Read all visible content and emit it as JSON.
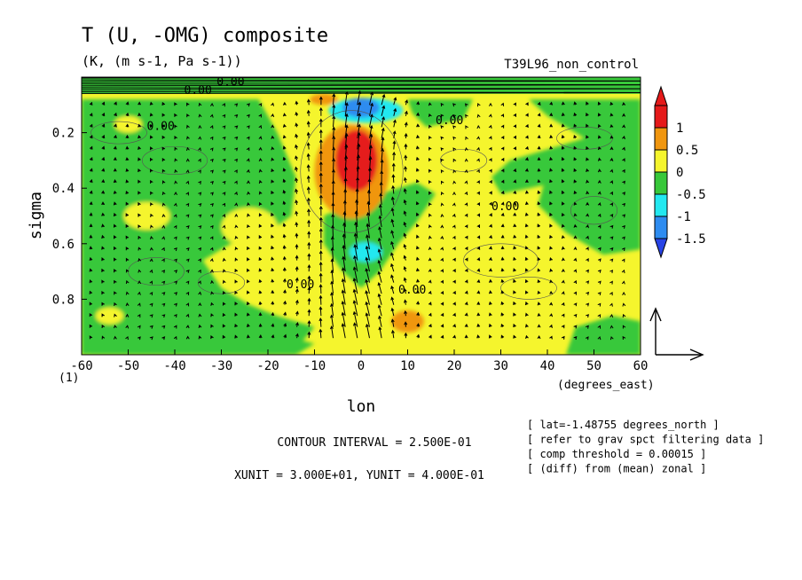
{
  "chart_data": {
    "type": "heatmap",
    "title": "T (U, -OMG) composite",
    "subtitle": "(K, (m s-1, Pa s-1))",
    "run_label": "T39L96_non_control",
    "xlabel": "lon",
    "xunits": "(degrees_east)",
    "ylabel": "sigma",
    "xlim": [
      -60,
      60
    ],
    "ylim": [
      1.0,
      0.0
    ],
    "y_inverted": true,
    "x_ticks": [
      "-60",
      "-50",
      "-40",
      "-30",
      "-20",
      "-10",
      "0",
      "10",
      "20",
      "30",
      "40",
      "50",
      "60"
    ],
    "y_ticks": [
      "0.2",
      "0.4",
      "0.6",
      "0.8"
    ],
    "y_bottom_label": "(1)",
    "colorbar": {
      "labels": [
        "1",
        "0.5",
        "0",
        "-0.5",
        "-1",
        "-1.5"
      ],
      "colors": [
        "#e51a1a",
        "#f0960f",
        "#f5f52d",
        "#38c83a",
        "#23e8f0",
        "#2e8cf0",
        "#2844e6"
      ]
    },
    "contour_labels": [
      "0.00"
    ],
    "contour_interval": "CONTOUR INTERVAL = 2.500E-01",
    "vector_units": "XUNIT = 3.000E+01, YUNIT = 4.000E-01",
    "notes": [
      "[ lat=-1.48755 degrees_north ]",
      "[ refer to grav spct filtering data ]",
      "[ comp threshold = 0.00015 ]",
      "[ (diff) from (mean) zonal ]"
    ],
    "features": [
      {
        "kind": "warm-max",
        "lon": -2,
        "sigma": 0.34,
        "value": 1.0
      },
      {
        "kind": "cold-min",
        "lon": 0,
        "sigma": 0.11,
        "value": -1.0
      },
      {
        "kind": "cold-min",
        "lon": 0,
        "sigma": 0.63,
        "value": -1.0
      },
      {
        "kind": "warm-max",
        "lon": 10,
        "sigma": 0.88,
        "value": 0.5
      }
    ]
  }
}
